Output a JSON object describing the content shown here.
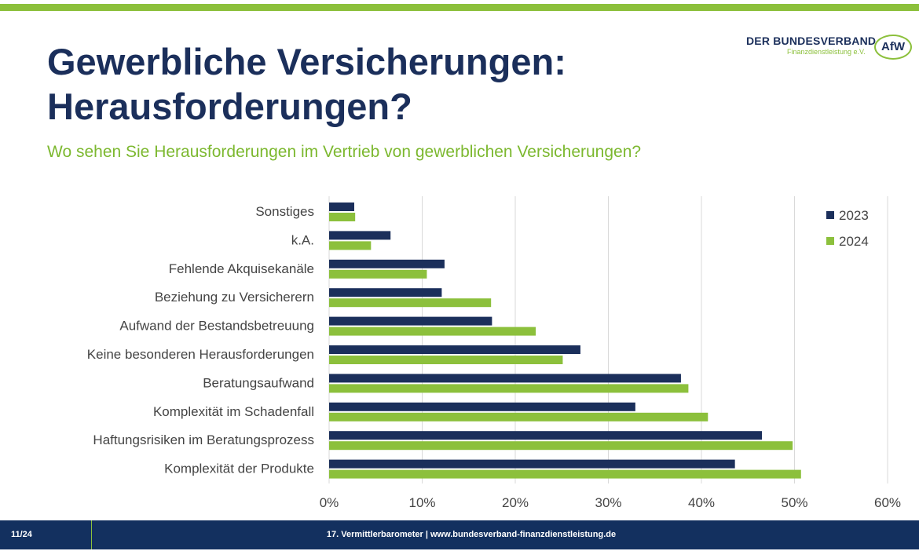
{
  "header": {
    "title_line1": "Gewerbliche Versicherungen:",
    "title_line2": "Herausforderungen?",
    "subtitle": "Wo sehen Sie Herausforderungen im Vertrieb von gewerblichen Versicherungen?"
  },
  "logo": {
    "line1": "DER BUNDESVERBAND",
    "line2": "Finanzdienstleistung e.V.",
    "badge": "AfW"
  },
  "footer": {
    "page": "11/24",
    "text": "17. Vermittlerbarometer | www.bundesverband-finanzdienstleistung.de"
  },
  "colors": {
    "accent": "#8cc03c",
    "navy": "#1b2f5b"
  },
  "chart_data": {
    "type": "bar",
    "orientation": "horizontal",
    "categories": [
      "Sonstiges",
      "k.A.",
      "Fehlende Akquisekanäle",
      "Beziehung zu Versicherern",
      "Aufwand der Bestandsbetreuung",
      "Keine besonderen Herausforderungen",
      "Beratungsaufwand",
      "Komplexität im Schadenfall",
      "Haftungsrisiken im Beratungsprozess",
      "Komplexität der Produkte"
    ],
    "series": [
      {
        "name": "2023",
        "color": "#1b2f5b",
        "values": [
          2.7,
          6.6,
          12.4,
          12.1,
          17.5,
          27.0,
          37.8,
          32.9,
          46.5,
          43.6
        ]
      },
      {
        "name": "2024",
        "color": "#8cc03c",
        "values": [
          2.8,
          4.5,
          10.5,
          17.4,
          22.2,
          25.1,
          38.6,
          40.7,
          49.8,
          50.7
        ]
      }
    ],
    "xlim": [
      0,
      60
    ],
    "xticks": [
      "0%",
      "10%",
      "20%",
      "30%",
      "40%",
      "50%",
      "60%"
    ],
    "grid": true,
    "legend": "top-right"
  }
}
